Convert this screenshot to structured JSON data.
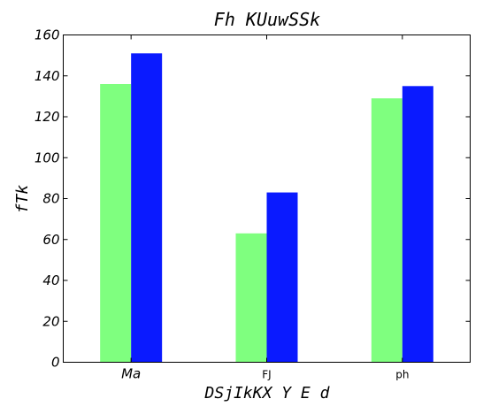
{
  "chart_data": {
    "type": "bar",
    "title": "Fh  KUuwSSk",
    "xlabel": "DSjIkKX Y E d",
    "ylabel": "fTk",
    "categories": [
      "Ma",
      "FJ",
      "ph"
    ],
    "series": [
      {
        "values": [
          136,
          63,
          129
        ],
        "color": "#7fff7f"
      },
      {
        "values": [
          151,
          83,
          135
        ],
        "color": "#0a1aff"
      }
    ],
    "ylim": [
      0,
      160
    ],
    "yticks": [
      0,
      20,
      40,
      60,
      80,
      100,
      120,
      140,
      160
    ],
    "grid": false,
    "legend": "none"
  }
}
